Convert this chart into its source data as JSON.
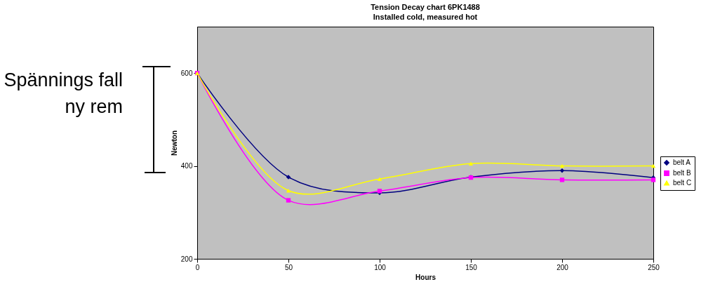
{
  "chart_data": {
    "type": "line",
    "title": "Tension Decay chart  6PK1488",
    "subtitle": "Installed cold, measured hot",
    "xlabel": "Hours",
    "ylabel": "Newton",
    "x": [
      0,
      50,
      100,
      150,
      200,
      250
    ],
    "series": [
      {
        "name": "belt A",
        "color": "#000080",
        "marker": "diamond",
        "values": [
          600,
          376,
          342,
          376,
          390,
          375
        ]
      },
      {
        "name": "belt B",
        "color": "#ff00ff",
        "marker": "square",
        "values": [
          600,
          326,
          346,
          375,
          370,
          370
        ]
      },
      {
        "name": "belt C",
        "color": "#ffff00",
        "marker": "triangle",
        "values": [
          600,
          347,
          372,
          405,
          400,
          400
        ]
      }
    ],
    "xlim": [
      0,
      250
    ],
    "xticks": [
      0,
      50,
      100,
      150,
      200,
      250
    ],
    "ylim": [
      200,
      700
    ],
    "yticks": [
      200,
      400,
      600
    ],
    "grid": false,
    "legend": "right",
    "line_style": "solid",
    "annotations": [
      "Spännings fall\nny rem"
    ]
  }
}
